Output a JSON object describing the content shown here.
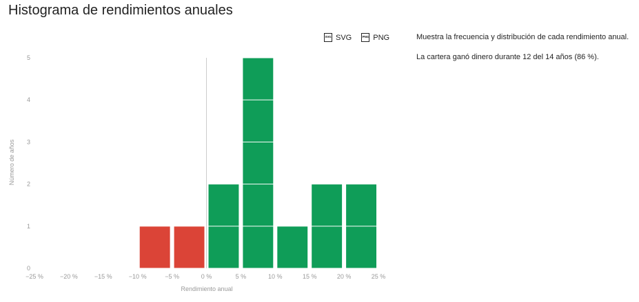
{
  "title": "Histograma de rendimientos anuales",
  "export": {
    "svg_icon_text": "SVG",
    "svg_label": "SVG",
    "png_icon_text": "PNG",
    "png_label": "PNG"
  },
  "info": {
    "description": "Muestra la frecuencia y distribución de cada rendimiento anual.",
    "summary": "La cartera ganó dinero durante 12 del 14 años (86 %)."
  },
  "colors": {
    "negative": "#db4437",
    "positive": "#0f9d58",
    "axis_text": "#999999",
    "zero_line": "#cccccc"
  },
  "chart_data": {
    "type": "bar",
    "subtype": "histogram",
    "xlabel": "Rendimiento anual",
    "ylabel": "Número de años",
    "xlim": [
      -25,
      25
    ],
    "ylim": [
      0,
      5
    ],
    "x_ticks": [
      -25,
      -20,
      -15,
      -10,
      -5,
      0,
      5,
      10,
      15,
      20,
      25
    ],
    "x_tick_labels": [
      "−25 %",
      "−20 %",
      "−15 %",
      "−10 %",
      "−5 %",
      "0 %",
      "5 %",
      "10 %",
      "15 %",
      "20 %",
      "25 %"
    ],
    "y_ticks": [
      0,
      1,
      2,
      3,
      4,
      5
    ],
    "bin_width": 5,
    "bins": [
      {
        "start": -10,
        "end": -5,
        "count": 1
      },
      {
        "start": -5,
        "end": 0,
        "count": 1
      },
      {
        "start": 0,
        "end": 5,
        "count": 2
      },
      {
        "start": 5,
        "end": 10,
        "count": 5
      },
      {
        "start": 10,
        "end": 15,
        "count": 1
      },
      {
        "start": 15,
        "end": 20,
        "count": 2
      },
      {
        "start": 20,
        "end": 25,
        "count": 2
      }
    ],
    "grid": false,
    "legend": "none"
  }
}
